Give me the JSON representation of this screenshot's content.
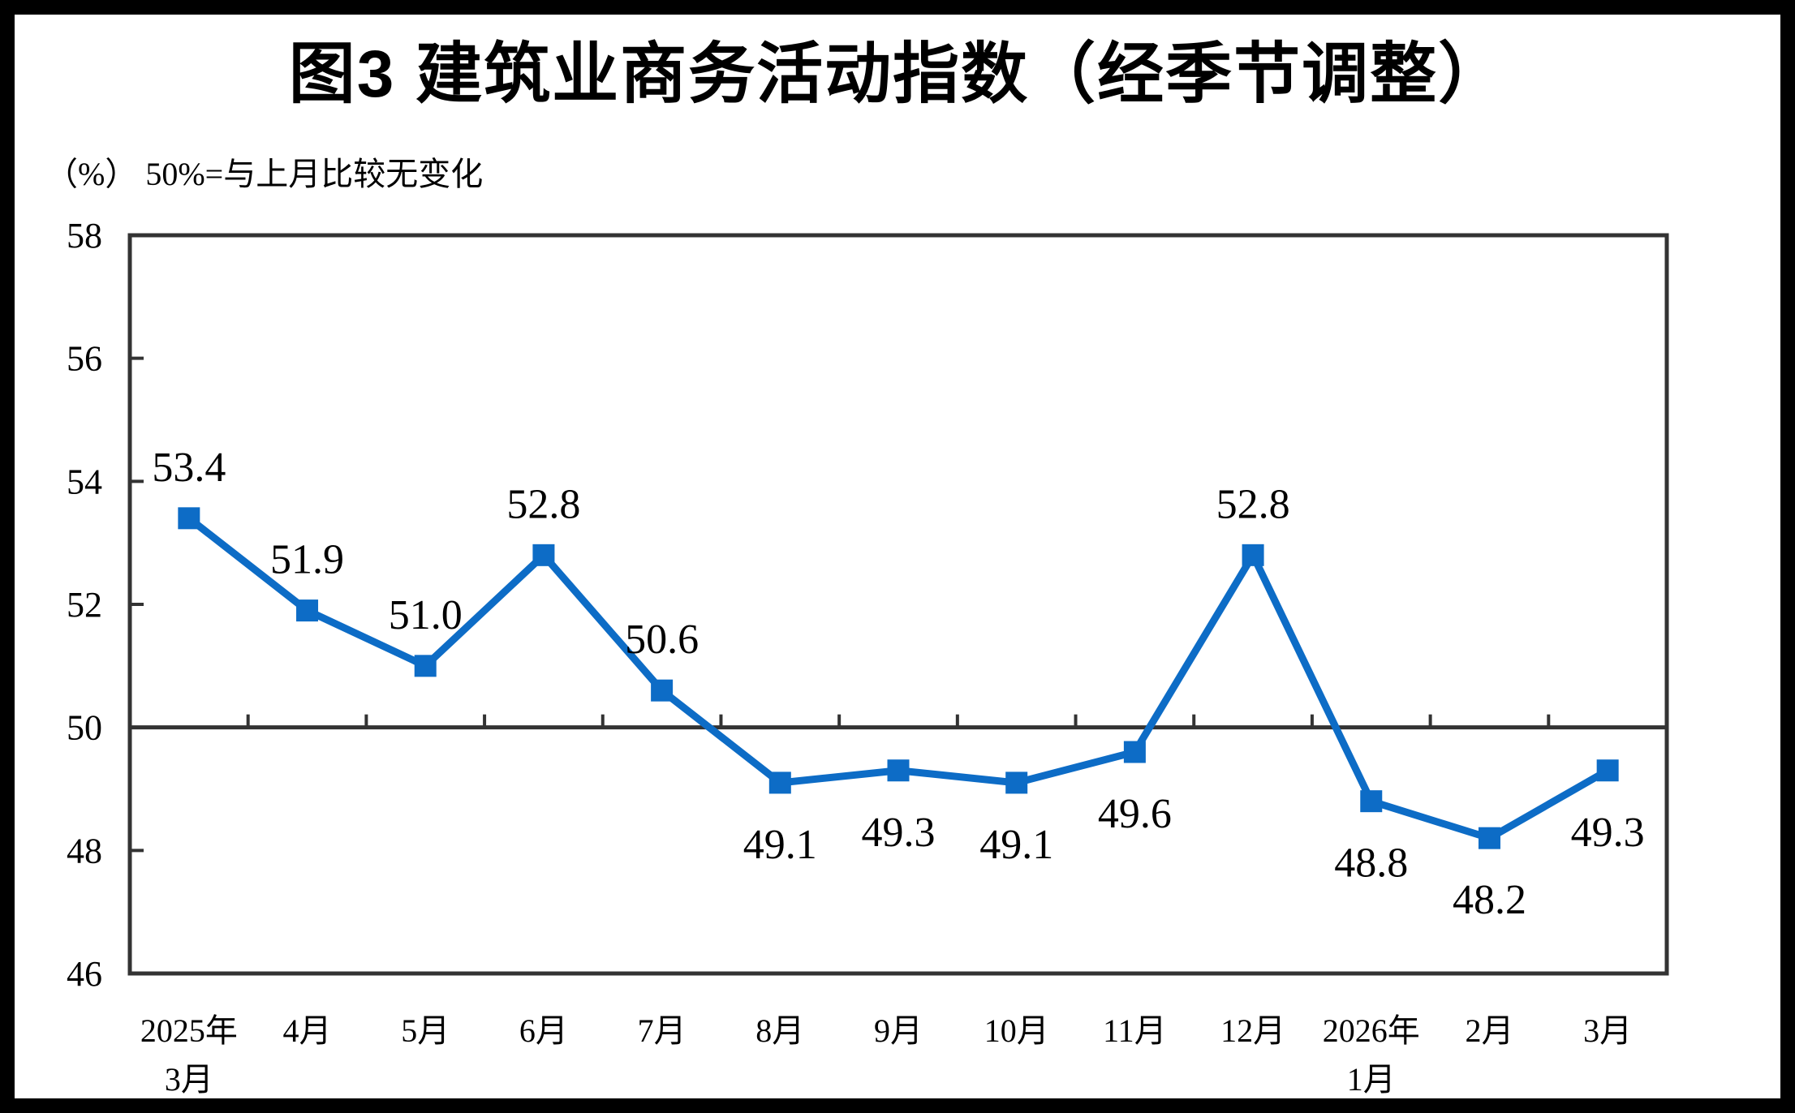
{
  "page": {
    "title": "图3 建筑业商务活动指数（经季节调整）",
    "unit_note": "（%） 50%=与上月比较无变化"
  },
  "chart_data": {
    "type": "line",
    "title": "图3 建筑业商务活动指数（经季节调整）",
    "subtitle_note": "（%） 50%=与上月比较无变化",
    "categories": [
      "2025年\n3月",
      "4月",
      "5月",
      "6月",
      "7月",
      "8月",
      "9月",
      "10月",
      "11月",
      "12月",
      "2026年\n1月",
      "2月",
      "3月"
    ],
    "values": [
      53.4,
      51.9,
      51.0,
      52.8,
      50.6,
      49.1,
      49.3,
      49.1,
      49.6,
      52.8,
      48.8,
      48.2,
      49.3
    ],
    "point_labels": [
      "53.4",
      "51.9",
      "51.0",
      "52.8",
      "50.6",
      "49.1",
      "49.3",
      "49.1",
      "49.6",
      "52.8",
      "48.8",
      "48.2",
      "49.3"
    ],
    "ylim": [
      46,
      58
    ],
    "yticks": [
      46,
      48,
      50,
      52,
      54,
      56,
      58
    ],
    "reference_line": 50,
    "grid": false,
    "legend": "none",
    "marker": "square",
    "line_color": "#0d6cc6",
    "axis_color": "#333333",
    "label_color": "#000000"
  }
}
